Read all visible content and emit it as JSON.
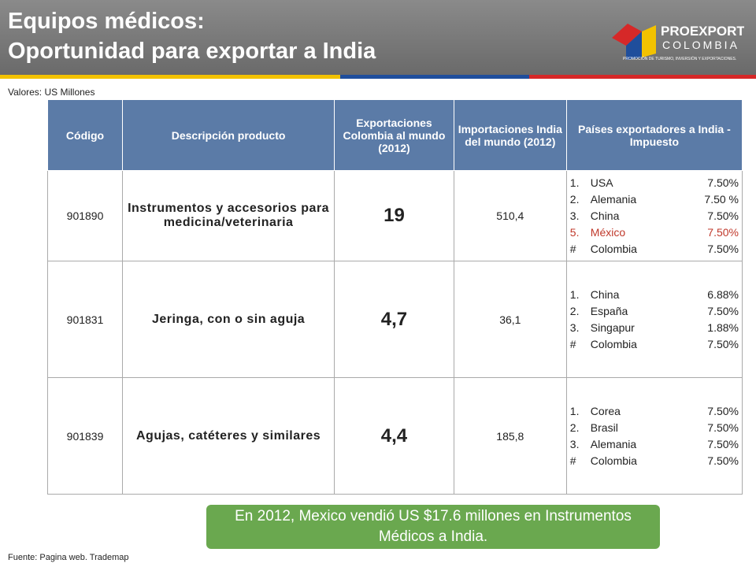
{
  "header": {
    "title_lines": [
      "Equipos médicos:",
      "Oportunidad para exportar a India"
    ],
    "logo": {
      "name": "PROEXPORT",
      "country": "COLOMBIA",
      "tagline": "PROMOCIÓN DE TURISMO, INVERSIÓN Y EXPORTACIONES."
    }
  },
  "note": "Valores: US Millones",
  "table": {
    "columns": [
      "Código",
      "Descripción producto",
      "Exportaciones Colombia al mundo (2012)",
      "Importaciones India del mundo (2012)",
      "Países exportadores a India - Impuesto"
    ],
    "rows": [
      {
        "code": "901890",
        "description": "Instrumentos y accesorios para medicina/veterinaria",
        "exports": "19",
        "imports": "510,4",
        "countries": [
          {
            "rank": "1.",
            "name": "USA",
            "rate": "7.50%"
          },
          {
            "rank": "2.",
            "name": "Alemania",
            "rate": "7.50 %"
          },
          {
            "rank": "3.",
            "name": "China",
            "rate": "7.50%"
          },
          {
            "rank": "5.",
            "name": "México",
            "rate": "7.50%",
            "color": "#c0392b"
          },
          {
            "rank": "#",
            "name": "Colombia",
            "rate": "7.50%"
          }
        ]
      },
      {
        "code": "901831",
        "description": "Jeringa, con o sin aguja",
        "exports": "4,7",
        "imports": "36,1",
        "countries": [
          {
            "rank": "1.",
            "name": "China",
            "rate": "6.88%"
          },
          {
            "rank": "2.",
            "name": "España",
            "rate": "7.50%"
          },
          {
            "rank": "3.",
            "name": "Singapur",
            "rate": "1.88%"
          },
          {
            "rank": "#",
            "name": "Colombia",
            "rate": "7.50%"
          }
        ]
      },
      {
        "code": "901839",
        "description": "Agujas, catéteres y similares",
        "exports": "4,4",
        "imports": "185,8",
        "countries": [
          {
            "rank": "1.",
            "name": "Corea",
            "rate": "7.50%"
          },
          {
            "rank": "2.",
            "name": "Brasil",
            "rate": "7.50%"
          },
          {
            "rank": "3.",
            "name": "Alemania",
            "rate": "7.50%"
          },
          {
            "rank": "#",
            "name": "Colombia",
            "rate": "7.50%"
          }
        ]
      }
    ]
  },
  "callout": "En  2012, Mexico vendió US $17.6 millones en Instrumentos Médicos a India.",
  "source": "Fuente: Pagina web. Trademap"
}
